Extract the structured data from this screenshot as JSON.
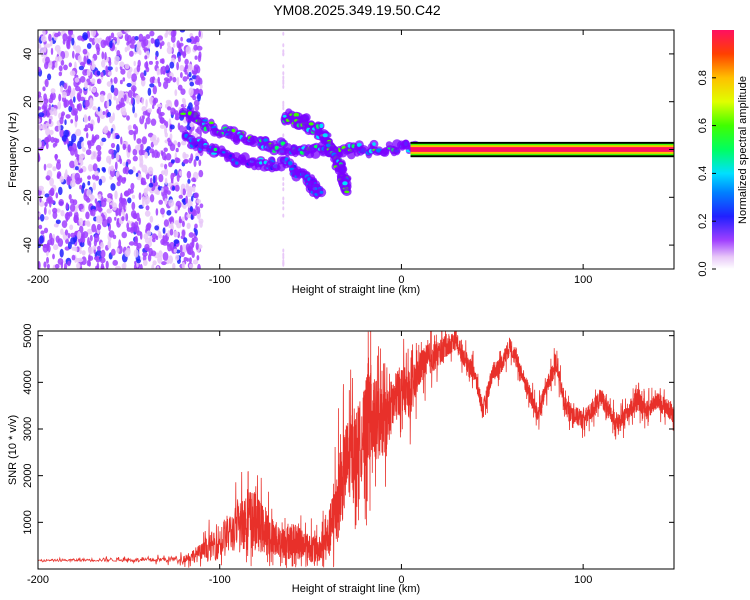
{
  "title": "YM08.2025.349.19.50.C42",
  "chart_data": [
    {
      "type": "heatmap",
      "id": "spectrogram",
      "xlabel": "Height of straight line (km)",
      "ylabel": "Frequency (Hz)",
      "xlim": [
        -200,
        150
      ],
      "ylim": [
        -50,
        50
      ],
      "xticks": [
        -200,
        -100,
        0,
        100
      ],
      "yticks": [
        -40,
        -20,
        0,
        20,
        40
      ],
      "colorbar": {
        "label": "Normalized spectral amplitude",
        "range": [
          0,
          1
        ],
        "ticks": [
          "0.0",
          "0.2",
          "0.4",
          "0.6",
          "0.8"
        ],
        "tick_values": [
          0.0,
          0.2,
          0.4,
          0.6,
          0.8
        ]
      },
      "features": {
        "noise_region_x": [
          -200,
          -115
        ],
        "carrier_line": {
          "x_start": 5,
          "x_end": 150,
          "freq": 0,
          "amplitude": 1.0
        },
        "tracks": [
          {
            "name": "main-track",
            "points": [
              [
                -120,
                15
              ],
              [
                -100,
                8
              ],
              [
                -80,
                3
              ],
              [
                -60,
                0
              ],
              [
                -40,
                -1
              ],
              [
                -20,
                0
              ],
              [
                0,
                1
              ],
              [
                20,
                0
              ]
            ],
            "amplitude": 0.5
          },
          {
            "name": "upper-branch",
            "points": [
              [
                -65,
                14
              ],
              [
                -55,
                12
              ],
              [
                -45,
                8
              ],
              [
                -40,
                3
              ]
            ],
            "amplitude": 0.55
          },
          {
            "name": "lower-branch",
            "points": [
              [
                -60,
                -8
              ],
              [
                -50,
                -14
              ],
              [
                -45,
                -18
              ]
            ],
            "amplitude": 0.3
          },
          {
            "name": "descending-branch",
            "points": [
              [
                -40,
                2
              ],
              [
                -35,
                -5
              ],
              [
                -32,
                -12
              ],
              [
                -30,
                -16
              ]
            ],
            "amplitude": 0.5
          },
          {
            "name": "lower-left-track",
            "points": [
              [
                -120,
                5
              ],
              [
                -100,
                -2
              ],
              [
                -80,
                -6
              ],
              [
                -60,
                -6
              ]
            ],
            "amplitude": 0.35
          }
        ]
      }
    },
    {
      "type": "line",
      "id": "snr",
      "xlabel": "Height of straight line (km)",
      "ylabel": "SNR (10 * v/v)",
      "xlim": [
        -200,
        150
      ],
      "ylim": [
        0,
        5100
      ],
      "xticks": [
        -200,
        -100,
        0,
        100
      ],
      "yticks": [
        1000,
        2000,
        3000,
        4000,
        5000
      ],
      "color": "#e8302a",
      "series": [
        {
          "name": "SNR",
          "x": [
            -200,
            -180,
            -160,
            -140,
            -120,
            -110,
            -100,
            -90,
            -85,
            -80,
            -75,
            -70,
            -65,
            -60,
            -55,
            -50,
            -45,
            -40,
            -35,
            -30,
            -25,
            -20,
            -18,
            -15,
            -10,
            -5,
            0,
            5,
            10,
            15,
            20,
            25,
            30,
            35,
            40,
            45,
            50,
            55,
            60,
            65,
            70,
            75,
            80,
            85,
            90,
            95,
            100,
            105,
            110,
            115,
            120,
            125,
            130,
            135,
            140,
            145,
            150
          ],
          "y": [
            180,
            190,
            200,
            190,
            220,
            350,
            600,
            900,
            1100,
            1000,
            800,
            650,
            550,
            600,
            550,
            450,
            400,
            700,
            1500,
            2300,
            2600,
            3000,
            3400,
            3200,
            3100,
            3500,
            3900,
            3700,
            4300,
            4500,
            4600,
            4800,
            4900,
            4500,
            4200,
            3400,
            4200,
            4400,
            4800,
            4300,
            3800,
            3300,
            3900,
            4400,
            3500,
            3300,
            3200,
            3400,
            3700,
            3300,
            3100,
            3400,
            3600,
            3400,
            3600,
            3500,
            3300
          ],
          "noise": [
            20,
            30,
            40,
            40,
            80,
            200,
            400,
            500,
            700,
            600,
            500,
            400,
            350,
            400,
            350,
            300,
            300,
            500,
            900,
            900,
            800,
            900,
            1200,
            900,
            700,
            600,
            500,
            500,
            400,
            350,
            300,
            250,
            200,
            200,
            200,
            200,
            200,
            200,
            200,
            200,
            200,
            200,
            200,
            200,
            200,
            200,
            200,
            200,
            200,
            200,
            200,
            200,
            200,
            200,
            200,
            200,
            200
          ]
        }
      ]
    }
  ]
}
